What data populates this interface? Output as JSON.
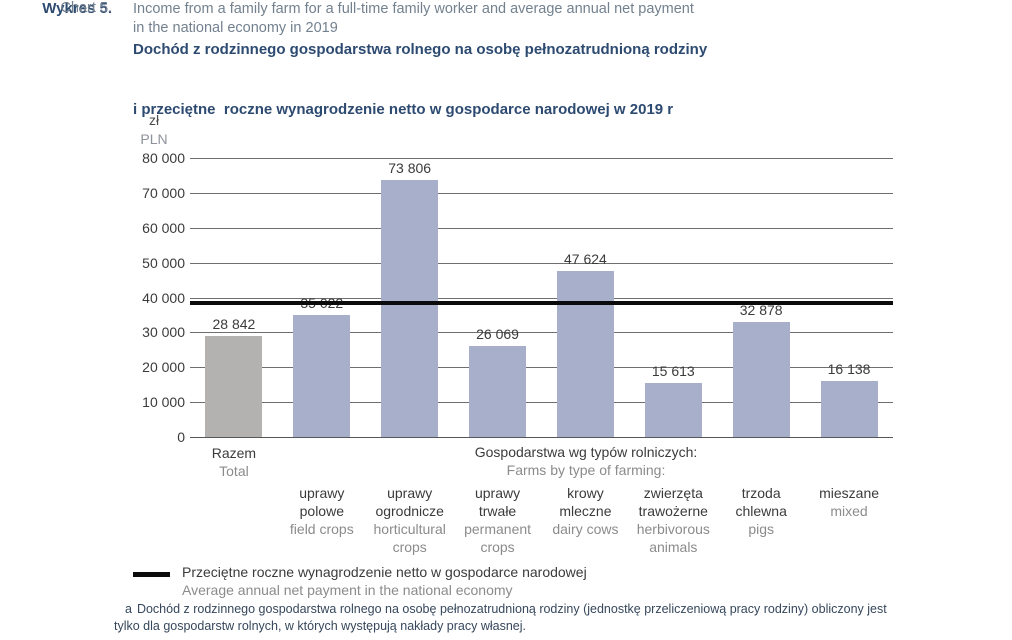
{
  "header": {
    "chart_label_pl": "Wykres 5.",
    "chart_label_en": "Chart 5.",
    "title_pl_line1": "Dochód z rodzinnego gospodarstwa rolnego na osobę pełnozatrudnioną rodziny",
    "title_pl_line2": "i przeciętne  roczne wynagrodzenie netto w gospodarce narodowej w 2019 r",
    "title_en_line1": "Income from a family farm for a full-time family worker and average annual net payment",
    "title_en_line2": "in the national economy in 2019"
  },
  "chart_data": {
    "type": "bar",
    "title": "Dochód z rodzinnego gospodarstwa rolnego na osobę pełnozatrudnioną rodziny i przeciętne roczne wynagrodzenie netto w gospodarce narodowej w 2019 r",
    "unit_label_pl": "zł",
    "unit_label_en": "PLN",
    "ylim": [
      0,
      80000
    ],
    "ytick_step": 10000,
    "ytick_values": [
      0,
      10000,
      20000,
      30000,
      40000,
      50000,
      60000,
      70000,
      80000
    ],
    "ytick_labels": [
      "0",
      "10 000",
      "20 000",
      "30 000",
      "40 000",
      "50 000",
      "60 000",
      "70 000",
      "80 000"
    ],
    "grid": true,
    "group_header_pl": "Gospodarstwa wg typów rolniczych:",
    "group_header_en": "Farms by type of farming:",
    "bar_colors": {
      "total": "#b3b2b1",
      "type": "#a8afca"
    },
    "bars": [
      {
        "value": 28842,
        "label": "28 842",
        "color_key": "total",
        "category_pl": [
          "Razem"
        ],
        "category_en": [
          "Total"
        ]
      },
      {
        "value": 35022,
        "label": "35 022",
        "color_key": "type",
        "category_pl": [
          "uprawy",
          "polowe"
        ],
        "category_en": [
          "field crops"
        ]
      },
      {
        "value": 73806,
        "label": "73 806",
        "color_key": "type",
        "category_pl": [
          "uprawy",
          "ogrodnicze"
        ],
        "category_en": [
          "horticultural",
          "crops"
        ]
      },
      {
        "value": 26069,
        "label": "26 069",
        "color_key": "type",
        "category_pl": [
          "uprawy",
          "trwałe"
        ],
        "category_en": [
          "permanent",
          "crops"
        ]
      },
      {
        "value": 47624,
        "label": "47 624",
        "color_key": "type",
        "category_pl": [
          "krowy",
          "mleczne"
        ],
        "category_en": [
          "dairy cows"
        ]
      },
      {
        "value": 15613,
        "label": "15 613",
        "color_key": "type",
        "category_pl": [
          "zwierzęta",
          "trawożerne"
        ],
        "category_en": [
          "herbivorous",
          "animals"
        ]
      },
      {
        "value": 32878,
        "label": "32 878",
        "color_key": "type",
        "category_pl": [
          "trzoda",
          "chlewna"
        ],
        "category_en": [
          "pigs"
        ]
      },
      {
        "value": 16138,
        "label": "16 138",
        "color_key": "type",
        "category_pl": [
          "mieszane"
        ],
        "category_en": [
          "mixed"
        ]
      }
    ],
    "reference_line": {
      "value": 38500,
      "approx": true,
      "color": "#0b0b0b",
      "label_pl": "Przeciętne roczne wynagrodzenie netto w gospodarce narodowej",
      "label_en": "Average annual net payment in the national economy"
    }
  },
  "footnote": {
    "marker": "a",
    "line1": "Dochód z rodzinnego gospodarstwa rolnego na osobę pełnozatrudnioną rodziny (jednostkę przeliczeniową pracy rodziny) obliczony jest",
    "line2": "tylko dla gospodarstw rolnych, w których występują nakłady pracy własnej."
  }
}
